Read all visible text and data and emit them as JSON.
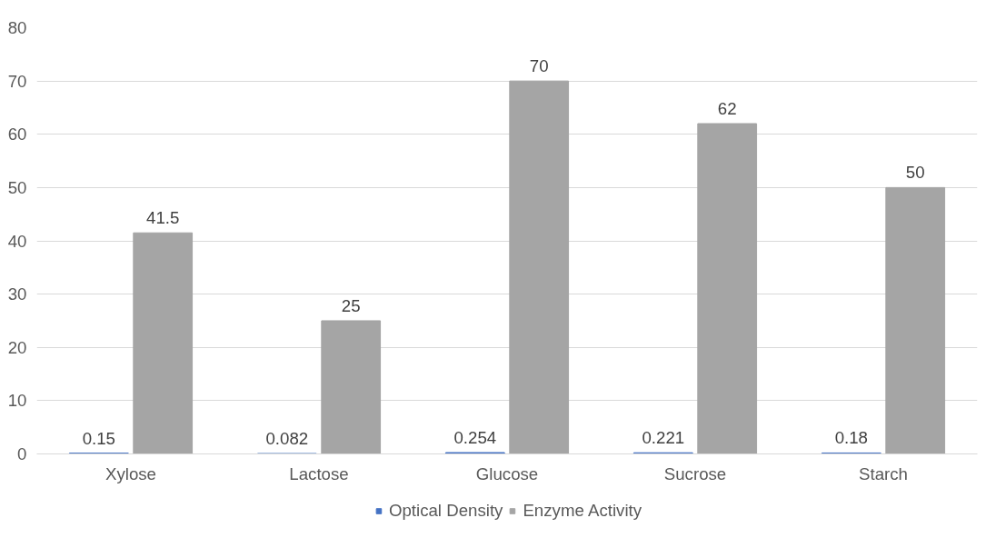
{
  "chart_data": {
    "type": "bar",
    "categories": [
      "Xylose",
      "Lactose",
      "Glucose",
      "Sucrose",
      "Starch"
    ],
    "series": [
      {
        "name": "Optical Density",
        "color": "#4472c4",
        "values": [
          0.15,
          0.082,
          0.254,
          0.221,
          0.18
        ]
      },
      {
        "name": "Enzyme Activity",
        "color": "#a5a5a5",
        "values": [
          41.5,
          25,
          70,
          62,
          50
        ]
      }
    ],
    "ylim": [
      0,
      80
    ],
    "yticks": [
      0,
      10,
      20,
      30,
      40,
      50,
      60,
      70,
      80
    ],
    "grid": "y",
    "legend": "bottom",
    "data_labels": true
  }
}
